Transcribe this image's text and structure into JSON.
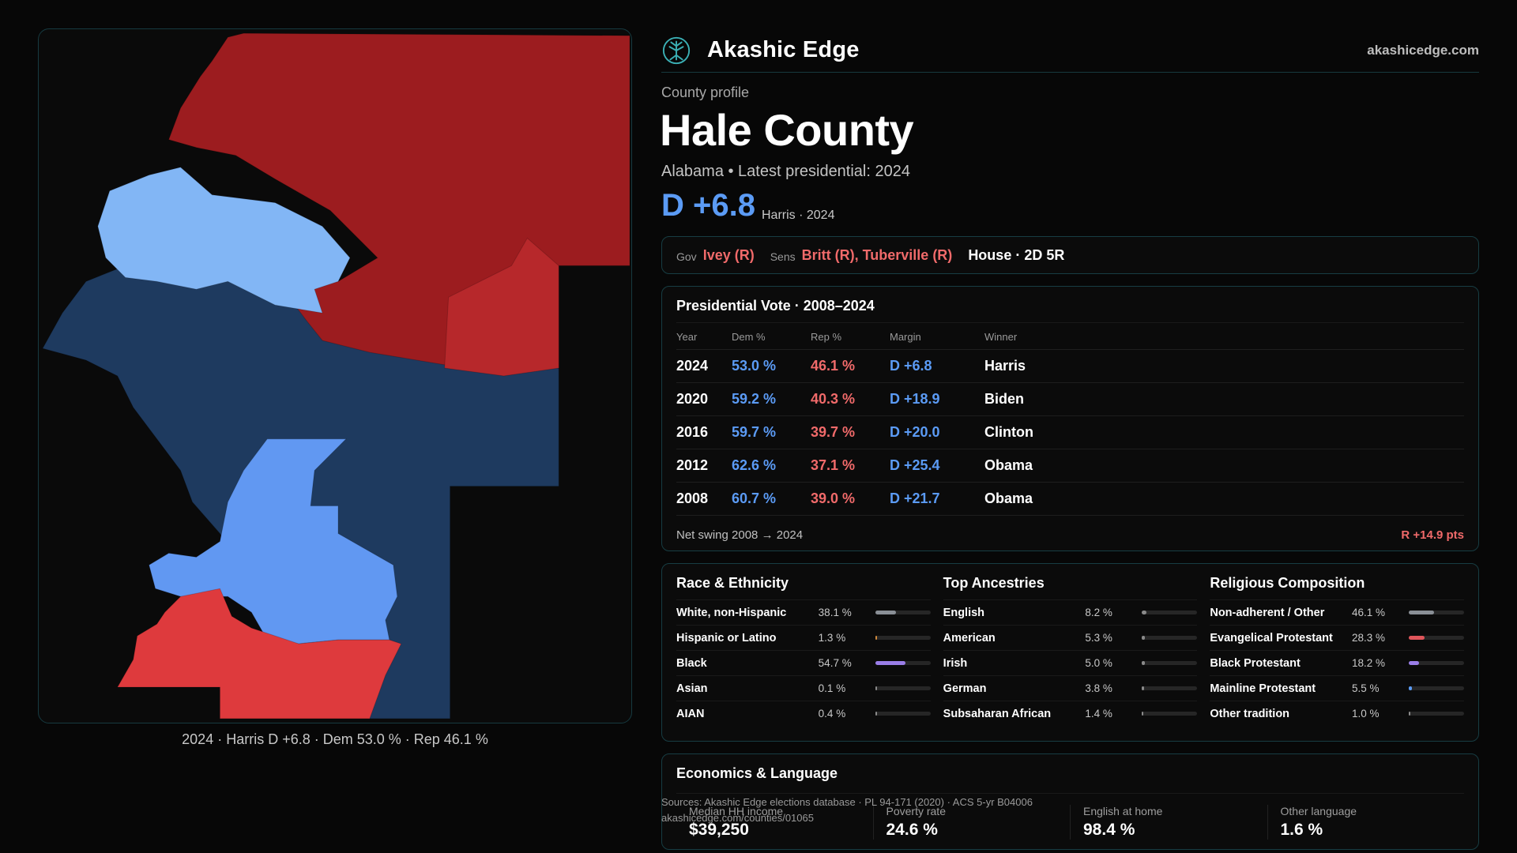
{
  "colors": {
    "dem_strong": "#1e3a5f",
    "dem_light": "#82b6f5",
    "dem_mid": "#6198f2",
    "rep_strong": "#9c1c1f",
    "rep_mid": "#b7282b",
    "rep_light": "#de3a3d",
    "accent_blue": "#5b9bf5",
    "accent_red": "#f06a6a"
  },
  "map": {
    "caption": "2024 · Harris D +6.8 · Dem 53.0 % · Rep 46.1 %"
  },
  "brand": {
    "logo_icon": "tree-logo-icon",
    "name": "Akashic Edge",
    "url": "akashicedge.com"
  },
  "profile": {
    "eyebrow": "County profile",
    "title": "Hale County",
    "subtitle": "Alabama • Latest presidential: 2024",
    "margin": "D +6.8",
    "winner_note": "Harris · 2024"
  },
  "officials": {
    "gov_label": "Gov",
    "gov": "Ivey (R)",
    "sens_label": "Sens",
    "sens": "Britt (R), Tuberville (R)",
    "house": "House · 2D 5R"
  },
  "votes": {
    "title": "Presidential Vote · 2008–2024",
    "headers": {
      "year": "Year",
      "dem": "Dem %",
      "rep": "Rep %",
      "margin": "Margin",
      "winner": "Winner"
    },
    "rows": [
      {
        "year": "2024",
        "dem": "53.0 %",
        "rep": "46.1 %",
        "margin": "D +6.8",
        "winner": "Harris"
      },
      {
        "year": "2020",
        "dem": "59.2 %",
        "rep": "40.3 %",
        "margin": "D +18.9",
        "winner": "Biden"
      },
      {
        "year": "2016",
        "dem": "59.7 %",
        "rep": "39.7 %",
        "margin": "D +20.0",
        "winner": "Clinton"
      },
      {
        "year": "2012",
        "dem": "62.6 %",
        "rep": "37.1 %",
        "margin": "D +25.4",
        "winner": "Obama"
      },
      {
        "year": "2008",
        "dem": "60.7 %",
        "rep": "39.0 %",
        "margin": "D +21.7",
        "winner": "Obama"
      }
    ],
    "swing_label": "Net swing 2008 → 2024",
    "swing_value": "R +14.9 pts"
  },
  "demographics": {
    "race": {
      "title": "Race & Ethnicity",
      "rows": [
        {
          "label": "White, non-Hispanic",
          "value": "38.1 %",
          "fill": 0.381,
          "color": "#8a8f96"
        },
        {
          "label": "Hispanic or Latino",
          "value": "1.3 %",
          "fill": 0.013,
          "color": "#d08a3c"
        },
        {
          "label": "Black",
          "value": "54.7 %",
          "fill": 0.547,
          "color": "#9a7ee8"
        },
        {
          "label": "Asian",
          "value": "0.1 %",
          "fill": 0.001,
          "color": "#8a8a8a"
        },
        {
          "label": "AIAN",
          "value": "0.4 %",
          "fill": 0.004,
          "color": "#8a8a8a"
        }
      ]
    },
    "ancestry": {
      "title": "Top Ancestries",
      "rows": [
        {
          "label": "English",
          "value": "8.2 %",
          "fill": 0.082,
          "color": "#8a8a8a"
        },
        {
          "label": "American",
          "value": "5.3 %",
          "fill": 0.053,
          "color": "#8a8a8a"
        },
        {
          "label": "Irish",
          "value": "5.0 %",
          "fill": 0.05,
          "color": "#8a8a8a"
        },
        {
          "label": "German",
          "value": "3.8 %",
          "fill": 0.038,
          "color": "#8a8a8a"
        },
        {
          "label": "Subsaharan African",
          "value": "1.4 %",
          "fill": 0.014,
          "color": "#8a8a8a"
        }
      ]
    },
    "religion": {
      "title": "Religious Composition",
      "rows": [
        {
          "label": "Non-adherent / Other",
          "value": "46.1 %",
          "fill": 0.461,
          "color": "#8a8f96"
        },
        {
          "label": "Evangelical Protestant",
          "value": "28.3 %",
          "fill": 0.283,
          "color": "#e0555a"
        },
        {
          "label": "Black Protestant",
          "value": "18.2 %",
          "fill": 0.182,
          "color": "#9a7ee8"
        },
        {
          "label": "Mainline Protestant",
          "value": "5.5 %",
          "fill": 0.055,
          "color": "#5b9bf5"
        },
        {
          "label": "Other tradition",
          "value": "1.0 %",
          "fill": 0.01,
          "color": "#8a8a8a"
        }
      ]
    }
  },
  "economics": {
    "title": "Economics & Language",
    "cells": [
      {
        "label": "Median HH income",
        "value": "$39,250"
      },
      {
        "label": "Poverty rate",
        "value": "24.6 %"
      },
      {
        "label": "English at home",
        "value": "98.4 %"
      },
      {
        "label": "Other language",
        "value": "1.6 %"
      }
    ]
  },
  "sources": {
    "line1": "Sources: Akashic Edge elections database · PL 94-171 (2020) · ACS 5-yr B04006",
    "line2": "akashicedge.com/counties/01065"
  }
}
